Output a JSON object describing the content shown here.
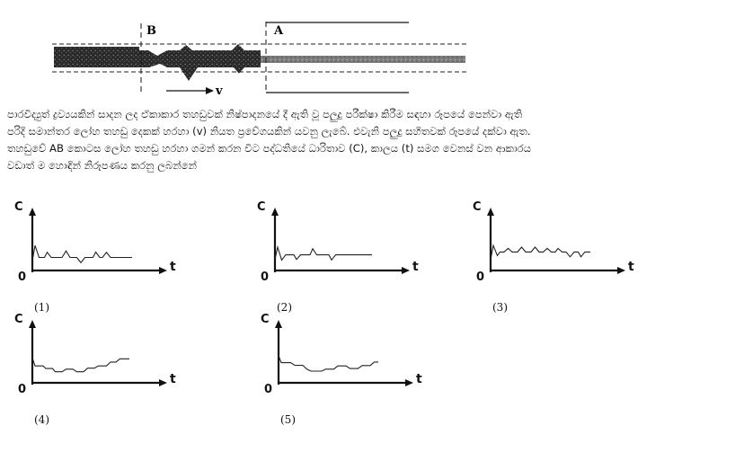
{
  "diagram": {
    "label_b": "B",
    "label_a": "A",
    "label_v": "v"
  },
  "question": {
    "lines": [
      "පාරවිද්‍යුත් ද්‍රව්‍යයකින් සාදන ලද ඒකාකාර තහඩුවක් නිෂ්පාදනයේ දී ඇති වූ පලුදු පරීක්ෂා කිරීම සඳහා රූපයේ පෙන්වා ඇති",
      "පරිදි සමාන්තර ලෝහ තහඩු දෙකක් හරහා (v) නියත ප්‍රවේගයකින් යවනු ලැබේ. එවැනි පලුදු සහිතවක් රූපයේ දක්වා ඇත.",
      "තහඩුවේ AB කොටස ලෝහ තහඩු හරහා ගමන් කරන විට පද්ධතියේ ධාරිතාව (C), කාලය (t) සමග වෙනස් වන ආකාරය",
      "වඩාත් ම හොඳින් නිරූපණය කරනු ලබන්නේ"
    ]
  },
  "graphs": [
    {
      "c": "C",
      "t": "t",
      "o": "0",
      "caption": "(1)",
      "curve": [
        [
          0,
          0.08
        ],
        [
          0.02,
          0.55
        ],
        [
          0.05,
          0.18
        ],
        [
          0.09,
          0.18
        ],
        [
          0.11,
          0.34
        ],
        [
          0.14,
          0.18
        ],
        [
          0.22,
          0.18
        ],
        [
          0.25,
          0.38
        ],
        [
          0.28,
          0.18
        ],
        [
          0.33,
          0.18
        ],
        [
          0.36,
          0.02
        ],
        [
          0.39,
          0.18
        ],
        [
          0.45,
          0.18
        ],
        [
          0.47,
          0.35
        ],
        [
          0.5,
          0.18
        ],
        [
          0.52,
          0.18
        ],
        [
          0.55,
          0.34
        ],
        [
          0.58,
          0.18
        ],
        [
          0.74,
          0.18
        ]
      ]
    },
    {
      "c": "C",
      "t": "t",
      "o": "0",
      "caption": "(2)",
      "curve": [
        [
          0,
          0.12
        ],
        [
          0.02,
          0.5
        ],
        [
          0.05,
          0.1
        ],
        [
          0.08,
          0.26
        ],
        [
          0.14,
          0.26
        ],
        [
          0.16,
          0.12
        ],
        [
          0.19,
          0.26
        ],
        [
          0.26,
          0.26
        ],
        [
          0.28,
          0.45
        ],
        [
          0.31,
          0.26
        ],
        [
          0.4,
          0.26
        ],
        [
          0.42,
          0.1
        ],
        [
          0.45,
          0.26
        ],
        [
          0.72,
          0.26
        ]
      ]
    },
    {
      "c": "C",
      "t": "t",
      "o": "0",
      "caption": "(3)",
      "curve": [
        [
          0,
          0.12
        ],
        [
          0.02,
          0.55
        ],
        [
          0.05,
          0.24
        ],
        [
          0.07,
          0.35
        ],
        [
          0.1,
          0.35
        ],
        [
          0.13,
          0.46
        ],
        [
          0.16,
          0.35
        ],
        [
          0.2,
          0.35
        ],
        [
          0.23,
          0.5
        ],
        [
          0.26,
          0.35
        ],
        [
          0.3,
          0.35
        ],
        [
          0.33,
          0.5
        ],
        [
          0.36,
          0.35
        ],
        [
          0.39,
          0.35
        ],
        [
          0.42,
          0.46
        ],
        [
          0.45,
          0.35
        ],
        [
          0.48,
          0.35
        ],
        [
          0.5,
          0.46
        ],
        [
          0.53,
          0.35
        ],
        [
          0.56,
          0.35
        ],
        [
          0.59,
          0.2
        ],
        [
          0.62,
          0.35
        ],
        [
          0.65,
          0.35
        ],
        [
          0.67,
          0.2
        ],
        [
          0.7,
          0.35
        ],
        [
          0.74,
          0.35
        ]
      ]
    },
    {
      "c": "C",
      "t": "t",
      "o": "0",
      "caption": "(4)",
      "curve": [
        [
          0,
          0.55
        ],
        [
          0.02,
          0.3
        ],
        [
          0.08,
          0.3
        ],
        [
          0.1,
          0.22
        ],
        [
          0.15,
          0.22
        ],
        [
          0.17,
          0.12
        ],
        [
          0.22,
          0.12
        ],
        [
          0.25,
          0.2
        ],
        [
          0.3,
          0.2
        ],
        [
          0.33,
          0.12
        ],
        [
          0.38,
          0.12
        ],
        [
          0.41,
          0.23
        ],
        [
          0.46,
          0.23
        ],
        [
          0.49,
          0.3
        ],
        [
          0.55,
          0.3
        ],
        [
          0.58,
          0.42
        ],
        [
          0.62,
          0.42
        ],
        [
          0.65,
          0.52
        ],
        [
          0.72,
          0.52
        ]
      ]
    },
    {
      "c": "C",
      "t": "t",
      "o": "0",
      "caption": "(5)",
      "curve": [
        [
          0,
          0.62
        ],
        [
          0.02,
          0.4
        ],
        [
          0.09,
          0.4
        ],
        [
          0.12,
          0.32
        ],
        [
          0.18,
          0.32
        ],
        [
          0.21,
          0.2
        ],
        [
          0.24,
          0.14
        ],
        [
          0.32,
          0.14
        ],
        [
          0.35,
          0.2
        ],
        [
          0.41,
          0.2
        ],
        [
          0.44,
          0.3
        ],
        [
          0.5,
          0.3
        ],
        [
          0.53,
          0.22
        ],
        [
          0.59,
          0.22
        ],
        [
          0.62,
          0.31
        ],
        [
          0.68,
          0.31
        ],
        [
          0.71,
          0.42
        ],
        [
          0.74,
          0.42
        ]
      ]
    }
  ]
}
